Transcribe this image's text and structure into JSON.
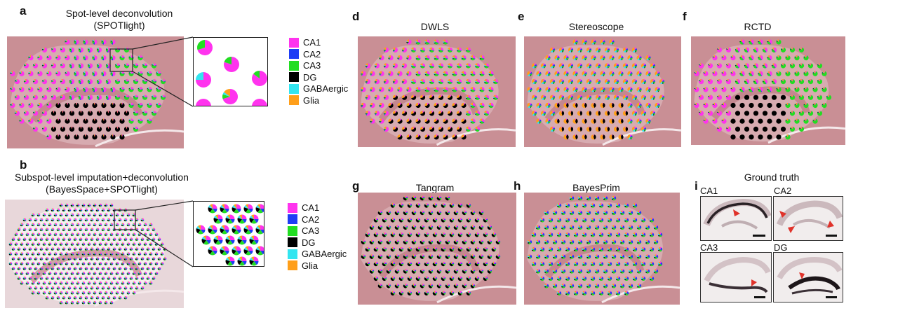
{
  "panels": {
    "a": {
      "letter": "a",
      "title": "Spot-level deconvolution\n(SPOTlight)"
    },
    "b": {
      "letter": "b",
      "title": "Subspot-level imputation+deconvolution\n(BayesSpace+SPOTlight)"
    },
    "d": {
      "letter": "d",
      "title": "DWLS"
    },
    "e": {
      "letter": "e",
      "title": "Stereoscope"
    },
    "f": {
      "letter": "f",
      "title": "RCTD"
    },
    "g": {
      "letter": "g",
      "title": "Tangram"
    },
    "h": {
      "letter": "h",
      "title": "BayesPrim"
    },
    "i": {
      "letter": "i",
      "title": "Ground truth"
    }
  },
  "legend": [
    {
      "label": "CA1",
      "color": "#ff33ee"
    },
    {
      "label": "CA2",
      "color": "#1f3df5"
    },
    {
      "label": "CA3",
      "color": "#22dd22"
    },
    {
      "label": "DG",
      "color": "#000000"
    },
    {
      "label": "GABAergic",
      "color": "#33e5f0"
    },
    {
      "label": "Glia",
      "color": "#ff9f1a"
    }
  ],
  "ground_truth": {
    "labels": [
      "CA1",
      "CA2",
      "CA3",
      "DG"
    ]
  },
  "colors": {
    "tissue": "#c98f95",
    "tissue_dark": "#b76f7a",
    "tissue_light": "#e2c3c6",
    "arrow": "#e0332b"
  }
}
